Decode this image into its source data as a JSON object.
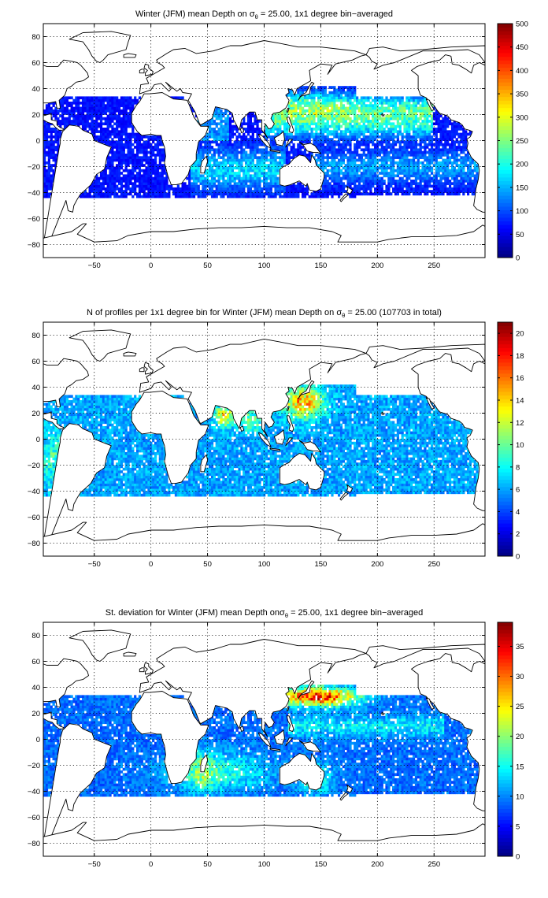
{
  "figure": {
    "panel_count": 3
  },
  "colormap": "jet",
  "chart_data": [
    {
      "type": "heatmap",
      "title_pre": "Winter (JFM) mean Depth on ",
      "title_sigma": "σ",
      "title_sub": "θ",
      "title_post": " = 25.00, 1x1 degree bin−averaged",
      "x_ticks": [
        -50,
        0,
        50,
        100,
        150,
        200,
        250
      ],
      "y_ticks": [
        -80,
        -60,
        -40,
        -20,
        0,
        20,
        40,
        60,
        80
      ],
      "xlim": [
        -95,
        295
      ],
      "ylim": [
        -90,
        90
      ],
      "clim": [
        0,
        500
      ],
      "colorbar_ticks": [
        0,
        50,
        100,
        150,
        200,
        250,
        300,
        350,
        400,
        450,
        500
      ],
      "grid": true,
      "field": "depth"
    },
    {
      "type": "heatmap",
      "title_pre": "N of profiles per 1x1 degree bin for Winter (JFM) mean Depth on ",
      "title_sigma": "σ",
      "title_sub": "θ",
      "title_post": " = 25.00 (107703 in total)",
      "x_ticks": [
        -50,
        0,
        50,
        100,
        150,
        200,
        250
      ],
      "y_ticks": [
        -80,
        -60,
        -40,
        -20,
        0,
        20,
        40,
        60,
        80
      ],
      "xlim": [
        -95,
        295
      ],
      "ylim": [
        -90,
        90
      ],
      "clim": [
        0,
        21
      ],
      "colorbar_ticks": [
        0,
        2,
        4,
        6,
        8,
        10,
        12,
        14,
        16,
        18,
        20
      ],
      "grid": true,
      "field": "count"
    },
    {
      "type": "heatmap",
      "title_pre": "St. deviation for Winter (JFM) mean Depth on",
      "title_sigma": "σ",
      "title_sub": "θ",
      "title_post": " = 25.00, 1x1 degree bin−averaged",
      "x_ticks": [
        -50,
        0,
        50,
        100,
        150,
        200,
        250
      ],
      "y_ticks": [
        -80,
        -60,
        -40,
        -20,
        0,
        20,
        40,
        60,
        80
      ],
      "xlim": [
        -95,
        295
      ],
      "ylim": [
        -90,
        90
      ],
      "clim": [
        0,
        39
      ],
      "colorbar_ticks": [
        0,
        5,
        10,
        15,
        20,
        25,
        30,
        35
      ],
      "grid": true,
      "field": "std"
    }
  ]
}
